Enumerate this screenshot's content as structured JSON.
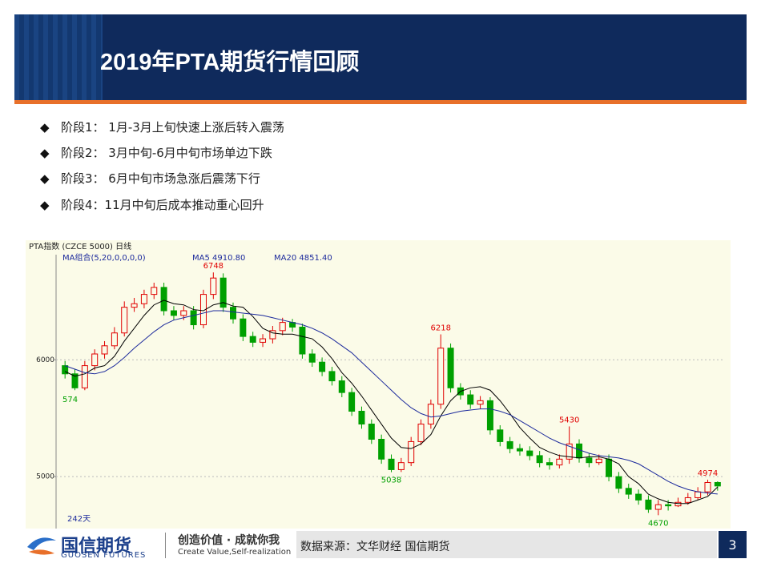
{
  "header": {
    "title": "2019年PTA期货行情回顾"
  },
  "bullets": [
    "阶段1： 1月-3月上旬快速上涨后转入震荡",
    "阶段2： 3月中旬-6月中旬市场单边下跌",
    "阶段3： 6月中旬市场急涨后震荡下行",
    "阶段4：11月中旬后成本推动重心回升"
  ],
  "chart_data": {
    "type": "candlestick",
    "title": "PTA指数 (CZCE 5000)  日线",
    "ma_caption": "MA组合(5,20,0,0,0,0)",
    "ma_labels": [
      "MA5 4910.80",
      "MA20 4851.40"
    ],
    "ylim": [
      4590,
      6900
    ],
    "yticks": [
      5000,
      6000
    ],
    "grid": true,
    "up_color": "#e00000",
    "down_color": "#00a000",
    "open": [
      5950,
      5880,
      5760,
      5950,
      6050,
      6120,
      6230,
      6450,
      6480,
      6560,
      6620,
      6420,
      6380,
      6420,
      6300,
      6560,
      6700,
      6450,
      6350,
      6200,
      6150,
      6180,
      6250,
      6320,
      6280,
      6050,
      5980,
      5900,
      5820,
      5720,
      5560,
      5450,
      5320,
      5150,
      5060,
      5120,
      5300,
      5450,
      5620,
      6100,
      5760,
      5700,
      5620,
      5650,
      5400,
      5300,
      5240,
      5220,
      5180,
      5120,
      5100,
      5150,
      5280,
      5160,
      5120,
      5150,
      5000,
      4900,
      4850,
      4800,
      4720,
      4760,
      4750,
      4780,
      4820,
      4870,
      4950
    ],
    "high": [
      5990,
      5920,
      5990,
      6090,
      6160,
      6280,
      6500,
      6530,
      6600,
      6660,
      6660,
      6460,
      6460,
      6460,
      6600,
      6748,
      6740,
      6490,
      6390,
      6240,
      6220,
      6290,
      6360,
      6350,
      6310,
      6090,
      6020,
      5940,
      5860,
      5760,
      5600,
      5490,
      5360,
      5190,
      5160,
      5340,
      5490,
      5660,
      6218,
      6140,
      5800,
      5740,
      5690,
      5680,
      5440,
      5340,
      5280,
      5260,
      5220,
      5160,
      5190,
      5430,
      5320,
      5200,
      5190,
      5190,
      5040,
      4940,
      4890,
      4840,
      4800,
      4800,
      4820,
      4860,
      4910,
      4974,
      4960
    ],
    "low": [
      5840,
      5740,
      5740,
      5910,
      6010,
      6090,
      6200,
      6410,
      6440,
      6520,
      6380,
      6340,
      6340,
      6260,
      6270,
      6520,
      6410,
      6310,
      6160,
      6110,
      6110,
      6140,
      6210,
      6240,
      6010,
      5940,
      5860,
      5780,
      5680,
      5520,
      5410,
      5280,
      5110,
      5038,
      5040,
      5090,
      5270,
      5410,
      5580,
      5720,
      5660,
      5580,
      5580,
      5360,
      5260,
      5200,
      5180,
      5140,
      5080,
      5060,
      5070,
      5110,
      5120,
      5080,
      5100,
      4960,
      4860,
      4810,
      4760,
      4690,
      4670,
      4710,
      4740,
      4760,
      4800,
      4840,
      4880
    ],
    "close": [
      5880,
      5760,
      5950,
      6050,
      6120,
      6230,
      6450,
      6480,
      6560,
      6620,
      6420,
      6380,
      6420,
      6300,
      6560,
      6700,
      6450,
      6350,
      6200,
      6150,
      6180,
      6250,
      6320,
      6280,
      6050,
      5980,
      5900,
      5820,
      5720,
      5560,
      5450,
      5320,
      5150,
      5060,
      5120,
      5300,
      5450,
      5620,
      6100,
      5760,
      5700,
      5620,
      5650,
      5400,
      5300,
      5240,
      5220,
      5180,
      5120,
      5100,
      5150,
      5280,
      5160,
      5120,
      5150,
      5000,
      4900,
      4850,
      4800,
      4720,
      4760,
      4750,
      4780,
      4820,
      4870,
      4950,
      4920
    ],
    "series": [
      {
        "color": "#000000",
        "values": [
          5900,
          5860,
          5880,
          5930,
          5950,
          6030,
          6160,
          6270,
          6380,
          6470,
          6510,
          6480,
          6470,
          6430,
          6420,
          6470,
          6490,
          6460,
          6450,
          6370,
          6270,
          6230,
          6220,
          6220,
          6200,
          6180,
          6110,
          6010,
          5890,
          5800,
          5690,
          5570,
          5450,
          5330,
          5250,
          5240,
          5280,
          5360,
          5520,
          5650,
          5730,
          5760,
          5770,
          5740,
          5650,
          5540,
          5420,
          5330,
          5250,
          5210,
          5180,
          5170,
          5160,
          5170,
          5170,
          5150,
          5110,
          5000,
          4940,
          4850,
          4810,
          4780,
          4770,
          4770,
          4800,
          4830,
          4911
        ]
      },
      {
        "color": "#1c2a9c",
        "values": [
          5950,
          5920,
          5890,
          5880,
          5900,
          5950,
          6020,
          6100,
          6170,
          6240,
          6300,
          6340,
          6360,
          6380,
          6400,
          6420,
          6420,
          6410,
          6400,
          6390,
          6380,
          6360,
          6340,
          6320,
          6300,
          6270,
          6230,
          6180,
          6120,
          6060,
          5980,
          5900,
          5820,
          5740,
          5660,
          5590,
          5540,
          5510,
          5520,
          5540,
          5560,
          5570,
          5580,
          5580,
          5560,
          5530,
          5480,
          5430,
          5380,
          5330,
          5290,
          5260,
          5230,
          5200,
          5180,
          5170,
          5160,
          5140,
          5110,
          5060,
          5010,
          4960,
          4920,
          4890,
          4870,
          4860,
          4851
        ]
      }
    ],
    "annotations": [
      "6748",
      "574",
      "6218",
      "5038",
      "5430",
      "4670",
      "4974",
      "242天"
    ]
  },
  "footer": {
    "brand": "国信期货",
    "brand_en": "GUOSEN FUTURES",
    "slogan": "创造价值 · 成就你我",
    "slogan_en": "Create Value,Self-realization",
    "source": "数据来源：文华财经 国信期货",
    "page": "3"
  }
}
